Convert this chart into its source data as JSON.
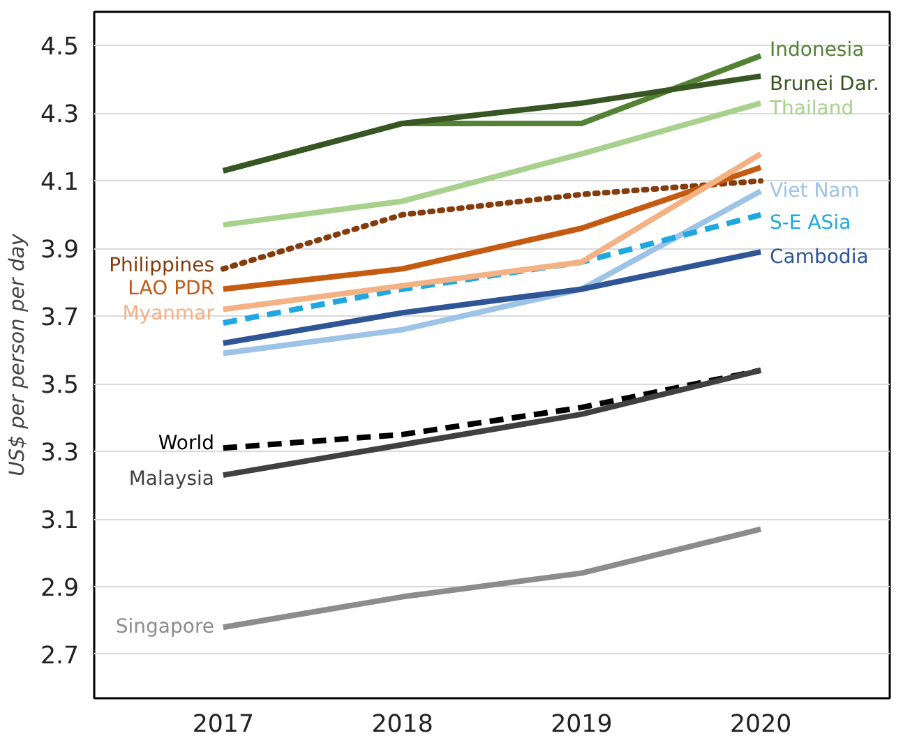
{
  "chart_data": {
    "type": "line",
    "ylabel": "US$ per person per day",
    "categories": [
      "2017",
      "2018",
      "2019",
      "2020"
    ],
    "ylim": [
      2.57,
      4.6
    ],
    "yticks": [
      2.7,
      2.9,
      3.1,
      3.3,
      3.5,
      3.7,
      3.9,
      4.1,
      4.3,
      4.5
    ],
    "grid": "y",
    "legend": false,
    "marker": "none",
    "series": [
      {
        "name": "Indonesia",
        "color": "#548235",
        "values": [
          4.13,
          4.27,
          4.27,
          4.47
        ]
      },
      {
        "name": "Brunei Dar.",
        "color": "#375623",
        "values": [
          4.13,
          4.27,
          4.33,
          4.41
        ]
      },
      {
        "name": "Thailand",
        "color": "#a9d18e",
        "values": [
          3.97,
          4.04,
          4.18,
          4.33
        ]
      },
      {
        "name": "Viet Nam",
        "color": "#9dc3e6",
        "values": [
          3.59,
          3.66,
          3.78,
          4.07
        ]
      },
      {
        "name": "S-E ASia",
        "color": "#1fa8e0",
        "values": [
          3.68,
          3.78,
          3.86,
          4.0
        ],
        "line_style": "dashed"
      },
      {
        "name": "Cambodia",
        "color": "#2f5597",
        "values": [
          3.62,
          3.71,
          3.78,
          3.89
        ]
      },
      {
        "name": "Philippines",
        "color": "#843c0c",
        "values": [
          3.84,
          4.0,
          4.06,
          4.1
        ],
        "line_style": "dotted"
      },
      {
        "name": "LAO PDR",
        "color": "#c55a11",
        "values": [
          3.78,
          3.84,
          3.96,
          4.14
        ]
      },
      {
        "name": "Myanmar",
        "color": "#f4b183",
        "values": [
          3.72,
          3.79,
          3.86,
          4.18
        ]
      },
      {
        "name": "World",
        "color": "#000000",
        "values": [
          3.31,
          3.35,
          3.43,
          3.54
        ],
        "line_style": "dashed"
      },
      {
        "name": "Malaysia",
        "color": "#404040",
        "values": [
          3.23,
          3.32,
          3.41,
          3.54
        ]
      },
      {
        "name": "Singapore",
        "color": "#8c8c8c",
        "values": [
          2.78,
          2.87,
          2.94,
          3.07
        ]
      }
    ]
  }
}
